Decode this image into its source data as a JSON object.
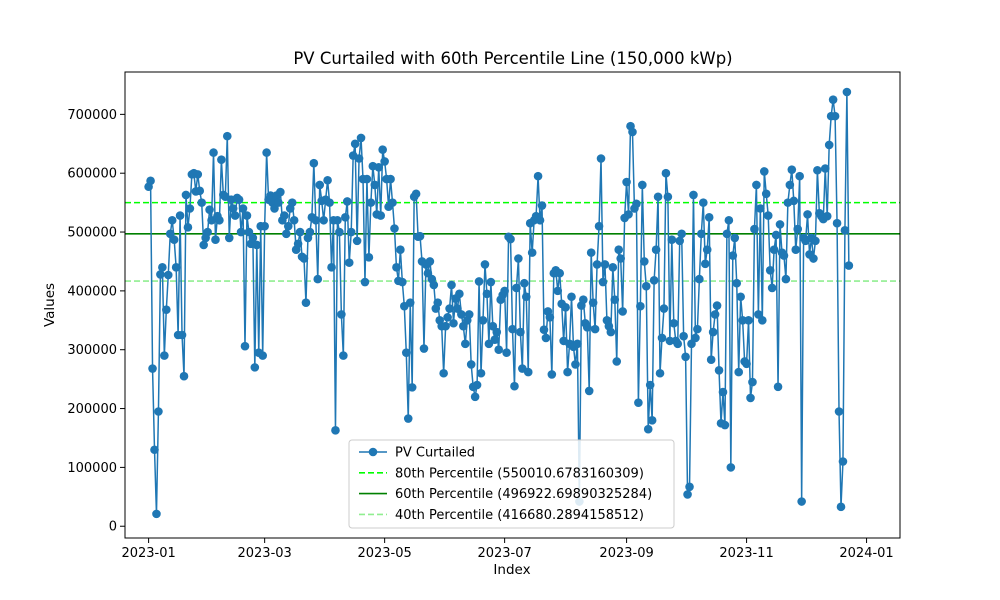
{
  "chart_data": {
    "type": "line",
    "title": "PV Curtailed with 60th Percentile Line (150,000 kWp)",
    "xlabel": "Index",
    "ylabel": "Values",
    "x_ticks": [
      "2023-01",
      "2023-03",
      "2023-05",
      "2023-07",
      "2023-09",
      "2023-11",
      "2024-01"
    ],
    "y_ticks": [
      "0",
      "100000",
      "200000",
      "300000",
      "400000",
      "500000",
      "600000",
      "700000"
    ],
    "xlim": [
      "2022-12-20",
      "2024-01-18"
    ],
    "ylim": [
      -20000,
      772000
    ],
    "legend_position": "lower center",
    "series": [
      {
        "name": "PV Curtailed",
        "color": "#1f77b4",
        "marker": "circle",
        "start_date": "2023-01-01",
        "step_days": 1,
        "values": [
          577000,
          587000,
          268000,
          130000,
          21000,
          195000,
          428000,
          440000,
          290000,
          368000,
          427000,
          497000,
          520000,
          487000,
          440000,
          325000,
          528000,
          325000,
          255000,
          563000,
          508000,
          540000,
          598000,
          600000,
          569000,
          598000,
          570000,
          550000,
          478000,
          490000,
          500000,
          538000,
          520000,
          635000,
          487000,
          527000,
          520000,
          623000,
          563000,
          560000,
          663000,
          490000,
          555000,
          540000,
          528000,
          558000,
          555000,
          500000,
          540000,
          306000,
          528000,
          500000,
          480000,
          490000,
          270000,
          478000,
          295000,
          510000,
          290000,
          510000,
          635000,
          555000,
          562000,
          550000,
          540000,
          562000,
          550000,
          568000,
          520000,
          528000,
          497000,
          510000,
          540000,
          550000,
          520000,
          470000,
          480000,
          500000,
          458000,
          455000,
          380000,
          490000,
          500000,
          525000,
          617000,
          520000,
          420000,
          580000,
          553000,
          520000,
          555000,
          588000,
          550000,
          440000,
          520000,
          163000,
          520000,
          500000,
          360000,
          290000,
          525000,
          552000,
          448000,
          500000,
          630000,
          650000,
          485000,
          625000,
          660000,
          590000,
          415000,
          590000,
          457000,
          550000,
          612000,
          580000,
          530000,
          610000,
          528000,
          640000,
          620000,
          590000,
          543000,
          590000,
          550000,
          506000,
          440000,
          417000,
          470000,
          415000,
          374000,
          295000,
          183000,
          380000,
          236000,
          560000,
          565000,
          492000,
          493000,
          450000,
          302000,
          445000,
          430000,
          450000,
          420000,
          410000,
          370000,
          380000,
          350000,
          340000,
          260000,
          340000,
          355000,
          370000,
          410000,
          345000,
          387000,
          370000,
          395000,
          360000,
          340000,
          310000,
          350000,
          360000,
          275000,
          237000,
          220000,
          240000,
          416000,
          260000,
          350000,
          445000,
          395000,
          310000,
          415000,
          340000,
          317000,
          330000,
          300000,
          385000,
          393000,
          400000,
          295000,
          492000,
          488000,
          335000,
          238000,
          405000,
          455000,
          330000,
          268000,
          413000,
          390000,
          262000,
          515000,
          465000,
          520000,
          527000,
          595000,
          520000,
          545000,
          334000,
          320000,
          365000,
          355000,
          258000,
          430000,
          435000,
          400000,
          430000,
          378000,
          315000,
          372000,
          262000,
          310000,
          390000,
          305000,
          275000,
          310000,
          42000,
          375000,
          385000,
          345000,
          338000,
          230000,
          465000,
          380000,
          335000,
          445000,
          510000,
          625000,
          415000,
          445000,
          350000,
          340000,
          330000,
          440000,
          385000,
          280000,
          470000,
          455000,
          365000,
          524000,
          585000,
          530000,
          680000,
          670000,
          540000,
          548000,
          210000,
          374000,
          580000,
          450000,
          408000,
          165000,
          240000,
          180000,
          418000,
          470000,
          560000,
          260000,
          320000,
          370000,
          600000,
          560000,
          315000,
          487000,
          345000,
          315000,
          310000,
          485000,
          497000,
          323000,
          288000,
          54000,
          67000,
          310000,
          563000,
          320000,
          335000,
          420000,
          497000,
          550000,
          446000,
          470000,
          525000,
          283000,
          330000,
          360000,
          375000,
          265000,
          175000,
          228000,
          172000,
          497000,
          520000,
          100000,
          460000,
          490000,
          413000,
          262000,
          390000,
          350000,
          280000,
          276000,
          350000,
          218000,
          245000,
          505000,
          580000,
          360000,
          540000,
          350000,
          603000,
          565000,
          528000,
          435000,
          405000,
          470000,
          495000,
          237000,
          513000,
          465000,
          460000,
          420000,
          550000,
          580000,
          606000,
          553000,
          470000,
          505000,
          595000,
          42000,
          490000,
          485000,
          530000,
          462000,
          490000,
          455000,
          485000,
          605000,
          532000,
          527000,
          522000,
          608000,
          527000,
          648000,
          697000,
          725000,
          697000,
          515000,
          195000,
          33000,
          110000,
          503000,
          738000,
          443000
        ]
      },
      {
        "name": "80th Percentile (550010.6783160309)",
        "color": "#00ff00",
        "style": "dashed",
        "value": 550010.6783160309
      },
      {
        "name": "60th Percentile (496922.69890325284)",
        "color": "#008000",
        "style": "solid",
        "value": 496922.69890325284
      },
      {
        "name": "40th Percentile (416680.2894158512)",
        "color": "#90ee90",
        "style": "dashed",
        "value": 416680.2894158512
      }
    ]
  }
}
